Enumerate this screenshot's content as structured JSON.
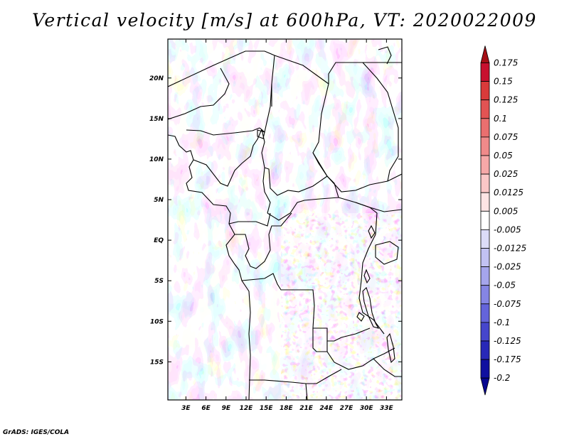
{
  "title": "Vertical velocity [m/s] at 600hPa, VT: 2020022009",
  "credit": "GrADS: IGES/COLA",
  "map": {
    "lon_labels": [
      "3E",
      "6E",
      "9E",
      "12E",
      "15E",
      "18E",
      "21E",
      "24E",
      "27E",
      "30E",
      "33E"
    ],
    "lat_labels": [
      "20N",
      "15N",
      "10N",
      "5N",
      "EQ",
      "5S",
      "10S",
      "15S"
    ],
    "lon_values": [
      3,
      6,
      9,
      12,
      15,
      18,
      21,
      24,
      27,
      30,
      33
    ],
    "lat_values": [
      20,
      15,
      10,
      5,
      0,
      -5,
      -10,
      -15
    ],
    "lon_range": [
      0.3,
      35.3
    ],
    "lat_range": [
      -19.7,
      24.8
    ]
  },
  "colorbar": {
    "labels": [
      "0.175",
      "0.15",
      "0.125",
      "0.1",
      "0.075",
      "0.05",
      "0.025",
      "0.0125",
      "0.005",
      "-0.005",
      "-0.0125",
      "-0.025",
      "-0.05",
      "-0.075",
      "-0.1",
      "-0.125",
      "-0.175",
      "-0.2"
    ],
    "colors": [
      "#a50f15",
      "#c8102e",
      "#d93a3a",
      "#e25353",
      "#ea6f6f",
      "#f08a8a",
      "#f6a8a8",
      "#fbc7c7",
      "#fde4e4",
      "#ffffff",
      "#dcdcf8",
      "#c2c2f3",
      "#a5a5ec",
      "#8585e4",
      "#6464da",
      "#4646cc",
      "#2828b8",
      "#1010a0",
      "#070790"
    ]
  },
  "colors": {
    "neutral": "#ffffff",
    "updraft": "#f4a0a0",
    "downdraft": "#a7a7ee",
    "border": "#000000"
  }
}
